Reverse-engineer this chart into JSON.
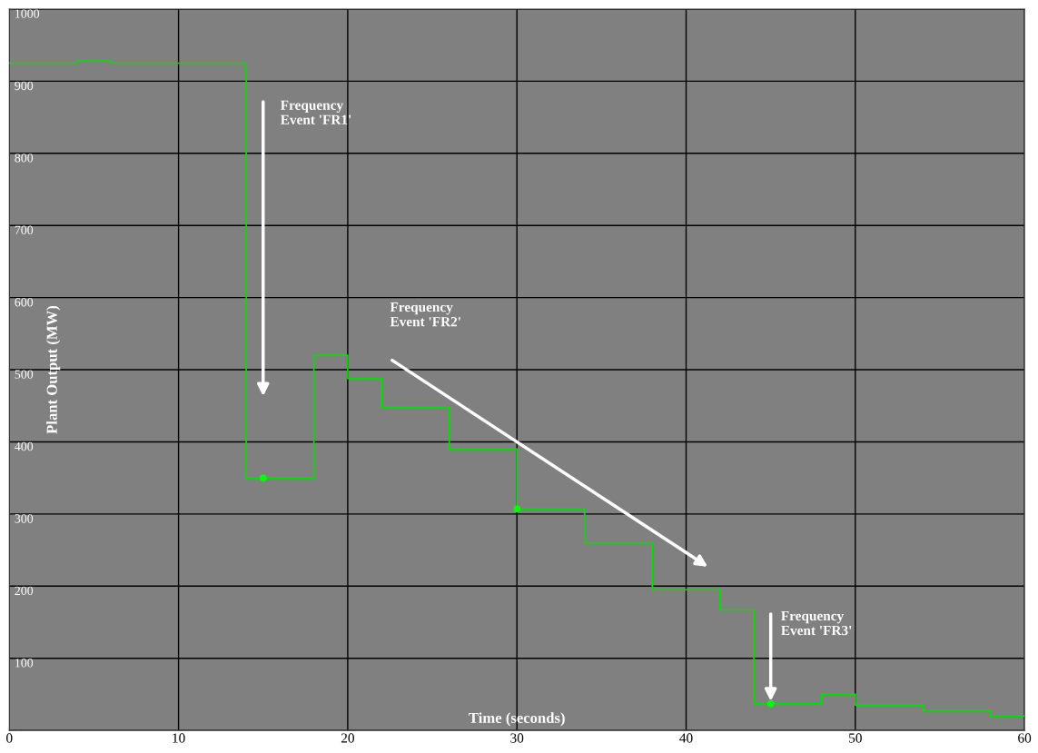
{
  "chart_data": {
    "type": "step",
    "xlabel": "Time (seconds)",
    "ylabel": "Plant Output (MW)",
    "series": [
      {
        "color": "#00e000",
        "x": [
          0,
          4,
          6,
          14,
          18,
          20,
          22,
          26,
          30,
          34,
          38,
          42,
          44,
          48,
          50,
          54,
          58,
          60
        ],
        "values": [
          925,
          928,
          925,
          350,
          520,
          488,
          448,
          390,
          307,
          260,
          195,
          167,
          37,
          50,
          35,
          28,
          20,
          20
        ]
      },
      {
        "type": "scatter",
        "color": "#00ff00",
        "x": [
          15,
          30,
          45
        ],
        "values": [
          350,
          307,
          37
        ]
      }
    ],
    "annotations": [
      "Frequency\nEvent 'FR1'",
      "Frequency\nEvent 'FR2'",
      {
        "text": "Frequency\nEvent 'FR3'",
        "x": 45,
        "y": 37
      }
    ],
    "xlim": [
      0,
      60
    ],
    "ylim": [
      0,
      1000
    ],
    "xticks": [
      0,
      10,
      20,
      30,
      40,
      50,
      60
    ],
    "yticks": [
      0,
      100,
      200,
      300,
      400,
      500,
      600,
      700,
      800,
      900,
      1000
    ],
    "grid": true,
    "legend": false,
    "line_style": "solid"
  }
}
